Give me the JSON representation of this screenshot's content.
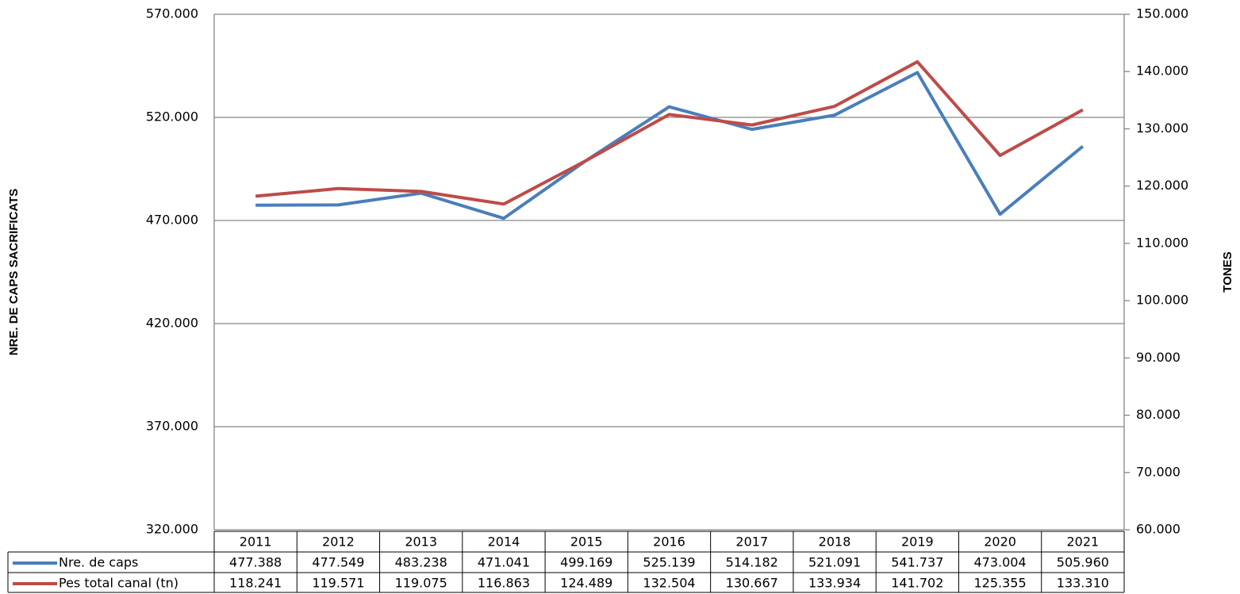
{
  "chart_data": {
    "type": "line",
    "y_label": "NRE. DE CAPS SACRIFICATS",
    "y2_label": "TONES",
    "categories": [
      "2011",
      "2012",
      "2013",
      "2014",
      "2015",
      "2016",
      "2017",
      "2018",
      "2019",
      "2020",
      "2021"
    ],
    "series": [
      {
        "name": "Nre. de caps",
        "color": "#4a7ebb",
        "values": [
          477388,
          477549,
          483238,
          471041,
          499169,
          525139,
          514182,
          521091,
          541737,
          473004,
          505960
        ],
        "value_labels": [
          "477.388",
          "477.549",
          "483.238",
          "471.041",
          "499.169",
          "525.139",
          "514.182",
          "521.091",
          "541.737",
          "473.004",
          "505.960"
        ]
      },
      {
        "name": "Pes total canal (tn)",
        "color": "#be4b48",
        "axis": "y2",
        "values": [
          118241,
          119571,
          119075,
          116863,
          124489,
          132504,
          130667,
          133934,
          141702,
          125355,
          133310
        ],
        "value_labels": [
          "118.241",
          "119.571",
          "119.075",
          "116.863",
          "124.489",
          "132.504",
          "130.667",
          "133.934",
          "141.702",
          "125.355",
          "133.310"
        ]
      }
    ],
    "ylim": [
      320000,
      570000
    ],
    "yticks": [
      {
        "value": 320000,
        "label": "320.000"
      },
      {
        "value": 370000,
        "label": "370.000"
      },
      {
        "value": 420000,
        "label": "420.000"
      },
      {
        "value": 470000,
        "label": "470.000"
      },
      {
        "value": 520000,
        "label": "520.000"
      },
      {
        "value": 570000,
        "label": "570.000"
      }
    ],
    "y2lim": [
      60000,
      150000
    ],
    "y2ticks": [
      {
        "value": 60000,
        "label": "60.000"
      },
      {
        "value": 70000,
        "label": "70.000"
      },
      {
        "value": 80000,
        "label": "80.000"
      },
      {
        "value": 90000,
        "label": "90.000"
      },
      {
        "value": 100000,
        "label": "100.000"
      },
      {
        "value": 110000,
        "label": "110.000"
      },
      {
        "value": 120000,
        "label": "120.000"
      },
      {
        "value": 130000,
        "label": "130.000"
      },
      {
        "value": 140000,
        "label": "140.000"
      },
      {
        "value": 150000,
        "label": "150.000"
      }
    ],
    "grid": true
  }
}
